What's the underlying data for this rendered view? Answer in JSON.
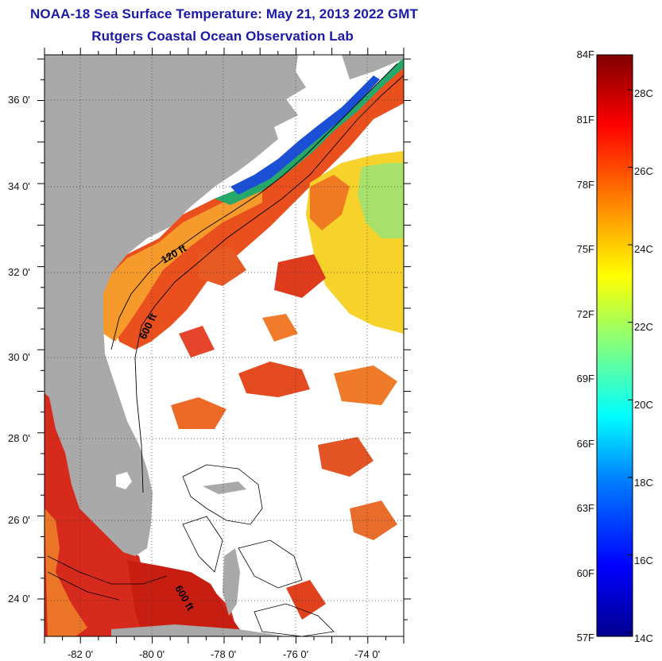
{
  "header": {
    "title": "NOAA-18 Sea Surface Temperature:  May 21, 2013 2022 GMT",
    "subtitle": "Rutgers Coastal Ocean Observation Lab"
  },
  "map": {
    "lat_labels": [
      "36 0'",
      "34 0'",
      "32 0'",
      "30 0'",
      "28 0'",
      "26 0'",
      "24 0'"
    ],
    "lat_values": [
      36,
      34,
      32,
      30,
      28,
      26,
      24
    ],
    "lon_labels": [
      "-82 0'",
      "-80 0'",
      "-78 0'",
      "-76 0'",
      "-74 0'"
    ],
    "lon_values": [
      -82,
      -80,
      -78,
      -76,
      -74
    ],
    "lat_range": [
      23.1,
      37.1
    ],
    "lon_range": [
      -83.0,
      -73.0
    ],
    "contour_labels": [
      "120 ft",
      "600 ft",
      "600 ft"
    ],
    "colors": {
      "land": "#a9a9a9",
      "cloud": "#ffffff",
      "warm": "#d8281a",
      "frame": "#000000"
    }
  },
  "colorbar": {
    "fahrenheit_labels": [
      "84F",
      "81F",
      "78F",
      "75F",
      "72F",
      "69F",
      "66F",
      "63F",
      "60F",
      "57F"
    ],
    "celsius_labels": [
      "28C",
      "26C",
      "24C",
      "22C",
      "20C",
      "18C",
      "16C",
      "14C"
    ],
    "celsius_values": [
      28,
      26,
      24,
      22,
      20,
      18,
      16,
      14
    ],
    "range_c": [
      13.9,
      28.9
    ],
    "gradient": [
      "#00008f",
      "#0000ff",
      "#0080ff",
      "#00ffff",
      "#80ff80",
      "#ffff00",
      "#ff8000",
      "#ff0000",
      "#800000"
    ]
  }
}
